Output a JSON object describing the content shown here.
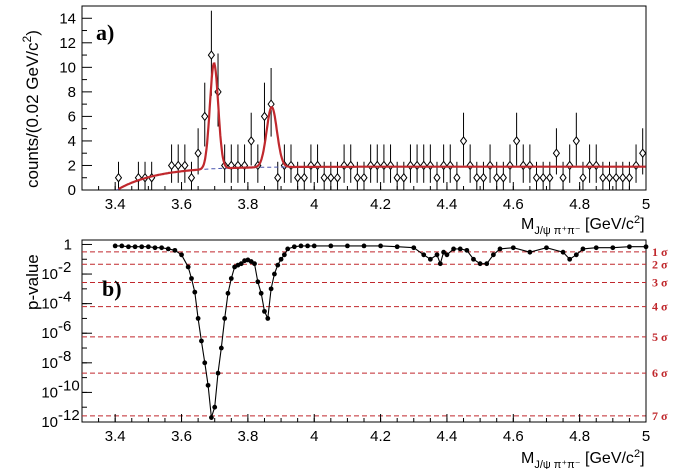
{
  "chart_data": [
    {
      "type": "scatter",
      "panel_label": "a)",
      "xlabel": "M_{J/ψ π⁺π⁻} [GeV/c²]",
      "ylabel": "counts/(0.02 GeV/c²)",
      "xlim": [
        3.3,
        5.0
      ],
      "ylim": [
        0,
        15
      ],
      "xticks": [
        "3.4",
        "3.6",
        "3.8",
        "4",
        "4.2",
        "4.4",
        "4.6",
        "4.8",
        "5"
      ],
      "yticks": [
        "0",
        "2",
        "4",
        "6",
        "8",
        "10",
        "12",
        "14"
      ],
      "colors": {
        "fit": "#c0282d",
        "background": "#4a56b0",
        "data": "#000000"
      },
      "series": [
        {
          "marker": "open-diamond",
          "x": [
            3.41,
            3.47,
            3.49,
            3.51,
            3.57,
            3.59,
            3.61,
            3.63,
            3.65,
            3.67,
            3.69,
            3.71,
            3.73,
            3.75,
            3.77,
            3.79,
            3.81,
            3.83,
            3.85,
            3.87,
            3.89,
            3.91,
            3.93,
            3.95,
            3.97,
            3.99,
            4.01,
            4.03,
            4.05,
            4.07,
            4.09,
            4.11,
            4.13,
            4.15,
            4.17,
            4.19,
            4.21,
            4.23,
            4.25,
            4.27,
            4.29,
            4.31,
            4.33,
            4.35,
            4.37,
            4.39,
            4.41,
            4.43,
            4.45,
            4.47,
            4.49,
            4.51,
            4.53,
            4.55,
            4.57,
            4.59,
            4.61,
            4.63,
            4.65,
            4.67,
            4.69,
            4.71,
            4.73,
            4.75,
            4.77,
            4.79,
            4.81,
            4.83,
            4.85,
            4.87,
            4.89,
            4.91,
            4.93,
            4.95,
            4.97,
            4.99
          ],
          "y": [
            1,
            1,
            1,
            1,
            2,
            2,
            2,
            1,
            3,
            6,
            11,
            8,
            2,
            2,
            2,
            2,
            4,
            2,
            6,
            7,
            1,
            2,
            2,
            1,
            1,
            2,
            2,
            1,
            1,
            1,
            2,
            2,
            1,
            1,
            2,
            2,
            2,
            2,
            1,
            1,
            2,
            2,
            2,
            2,
            1,
            2,
            2,
            1,
            4,
            2,
            1,
            1,
            2,
            1,
            1,
            2,
            4,
            2,
            2,
            1,
            1,
            1,
            3,
            1,
            2,
            4,
            1,
            2,
            2,
            1,
            1,
            1,
            1,
            1,
            2,
            3
          ]
        }
      ]
    },
    {
      "type": "line",
      "panel_label": "b)",
      "xlabel": "M_{J/ψ π⁺π⁻} [GeV/c²]",
      "ylabel": "p-value",
      "yscale": "log",
      "xlim": [
        3.3,
        5.0
      ],
      "ylim": [
        1e-12,
        2
      ],
      "xticks": [
        "3.4",
        "3.6",
        "3.8",
        "4",
        "4.2",
        "4.4",
        "4.6",
        "4.8",
        "5"
      ],
      "yticks": [
        "1",
        "10^-2",
        "10^-4",
        "10^-6",
        "10^-8",
        "10^-10",
        "10^-12"
      ],
      "sigma_lines": [
        {
          "label": "1 σ",
          "p": 0.3173
        },
        {
          "label": "2 σ",
          "p": 0.0455
        },
        {
          "label": "3 σ",
          "p": 0.0027
        },
        {
          "label": "4 σ",
          "p": 6.3e-05
        },
        {
          "label": "5 σ",
          "p": 5.7e-07
        },
        {
          "label": "6 σ",
          "p": 2e-09
        },
        {
          "label": "7 σ",
          "p": 2.6e-12
        }
      ],
      "series": [
        {
          "marker": "filled-circle",
          "x": [
            3.4,
            3.42,
            3.44,
            3.46,
            3.48,
            3.5,
            3.52,
            3.54,
            3.56,
            3.58,
            3.6,
            3.62,
            3.63,
            3.64,
            3.65,
            3.66,
            3.67,
            3.68,
            3.69,
            3.7,
            3.71,
            3.72,
            3.73,
            3.74,
            3.75,
            3.76,
            3.77,
            3.78,
            3.79,
            3.8,
            3.81,
            3.82,
            3.83,
            3.84,
            3.85,
            3.86,
            3.87,
            3.88,
            3.89,
            3.9,
            3.91,
            3.92,
            3.94,
            3.96,
            3.98,
            4.0,
            4.05,
            4.1,
            4.15,
            4.2,
            4.25,
            4.3,
            4.33,
            4.35,
            4.37,
            4.38,
            4.39,
            4.4,
            4.42,
            4.44,
            4.46,
            4.48,
            4.5,
            4.52,
            4.54,
            4.56,
            4.6,
            4.65,
            4.7,
            4.75,
            4.77,
            4.79,
            4.81,
            4.85,
            4.9,
            4.95,
            5.0
          ],
          "y": [
            0.8,
            0.8,
            0.7,
            0.7,
            0.7,
            0.7,
            0.6,
            0.6,
            0.5,
            0.4,
            0.2,
            0.03,
            0.005,
            0.0006,
            1e-05,
            3e-07,
            1e-08,
            3e-10,
            2e-12,
            1e-11,
            2e-09,
            1e-07,
            1e-05,
            0.0005,
            0.005,
            0.03,
            0.04,
            0.05,
            0.08,
            0.09,
            0.07,
            0.05,
            0.003,
            0.0005,
            3e-05,
            1e-05,
            0.001,
            0.01,
            0.04,
            0.1,
            0.2,
            0.5,
            0.7,
            0.8,
            0.8,
            0.8,
            0.8,
            0.8,
            0.8,
            0.8,
            0.7,
            0.6,
            0.2,
            0.1,
            0.2,
            0.05,
            0.3,
            0.2,
            0.5,
            0.5,
            0.4,
            0.1,
            0.05,
            0.05,
            0.2,
            0.5,
            0.6,
            0.3,
            0.6,
            0.3,
            0.1,
            0.2,
            0.5,
            0.6,
            0.6,
            0.7,
            0.7
          ]
        }
      ]
    }
  ]
}
